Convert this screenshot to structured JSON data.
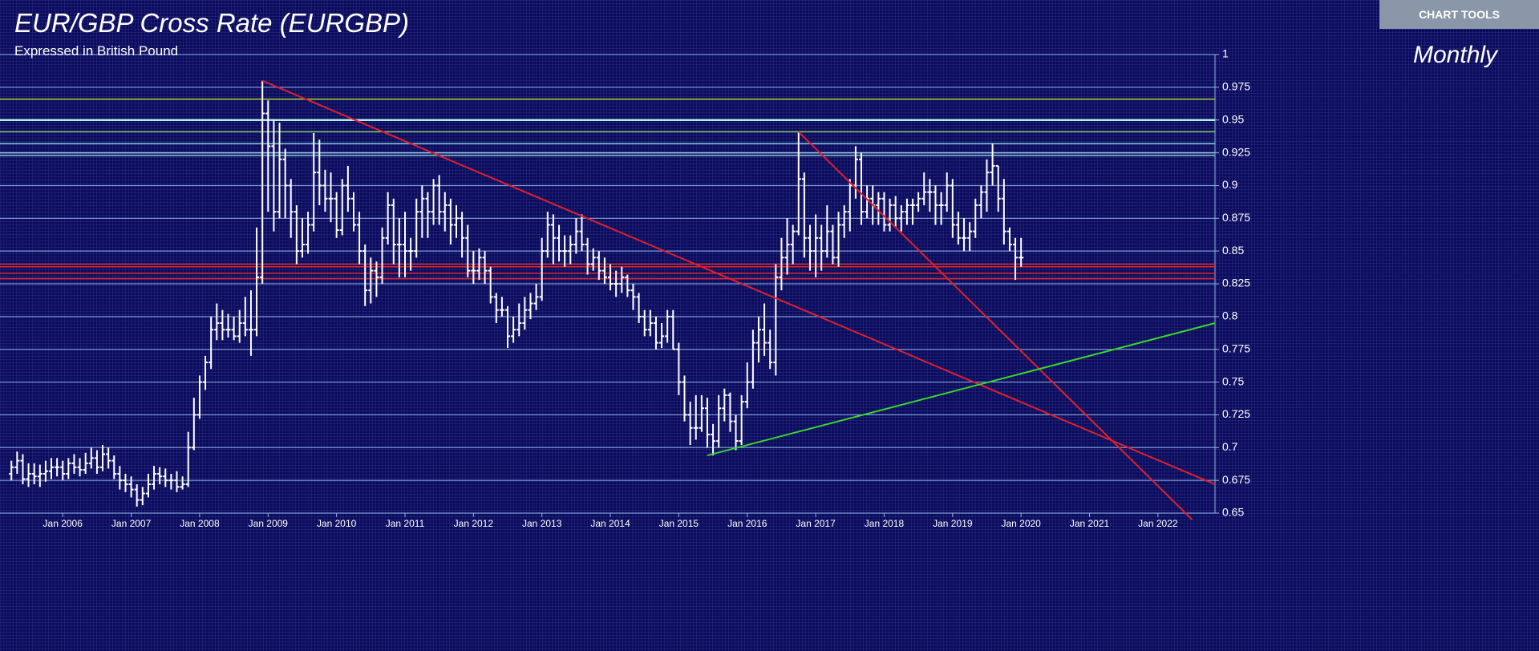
{
  "chart_tools": "CHART TOOLS",
  "chart_data": {
    "type": "ohlc",
    "title": "EUR/GBP Cross Rate (EURGBP)",
    "subtitle": "Expressed in British Pound",
    "period": "Monthly",
    "color": "#ffffff",
    "grid": true,
    "xlim": [
      "2005-02",
      "2022-11"
    ],
    "xticks": [
      {
        "value": "2006-01",
        "label": "Jan 2006"
      },
      {
        "value": "2007-01",
        "label": "Jan 2007"
      },
      {
        "value": "2008-01",
        "label": "Jan 2008"
      },
      {
        "value": "2009-01",
        "label": "Jan 2009"
      },
      {
        "value": "2010-01",
        "label": "Jan 2010"
      },
      {
        "value": "2011-01",
        "label": "Jan 2011"
      },
      {
        "value": "2012-01",
        "label": "Jan 2012"
      },
      {
        "value": "2013-01",
        "label": "Jan 2013"
      },
      {
        "value": "2014-01",
        "label": "Jan 2014"
      },
      {
        "value": "2015-01",
        "label": "Jan 2015"
      },
      {
        "value": "2016-01",
        "label": "Jan 2016"
      },
      {
        "value": "2017-01",
        "label": "Jan 2017"
      },
      {
        "value": "2018-01",
        "label": "Jan 2018"
      },
      {
        "value": "2019-01",
        "label": "Jan 2019"
      },
      {
        "value": "2020-01",
        "label": "Jan 2020"
      },
      {
        "value": "2021-01",
        "label": "Jan 2021"
      },
      {
        "value": "2022-01",
        "label": "Jan 2022"
      }
    ],
    "ylim": [
      0.65,
      1
    ],
    "yticks": [
      0.65,
      0.675,
      0.7,
      0.725,
      0.75,
      0.775,
      0.8,
      0.825,
      0.85,
      0.875,
      0.9,
      0.925,
      0.95,
      0.975,
      1
    ],
    "levels": [
      {
        "value": 0.966,
        "color": "#a6d22a"
      },
      {
        "value": 0.95,
        "color": "#aef0e6"
      },
      {
        "value": 0.941,
        "color": "#8fd06a"
      },
      {
        "value": 0.932,
        "color": "#7fd0e0"
      },
      {
        "value": 0.925,
        "color": "#9fc8e8"
      },
      {
        "value": 0.923,
        "color": "#7cc8c8"
      },
      {
        "value": 0.84,
        "color": "#e02828"
      },
      {
        "value": 0.838,
        "color": "#e02828"
      },
      {
        "value": 0.833,
        "color": "#e02828"
      },
      {
        "value": 0.829,
        "color": "#e02828"
      }
    ],
    "trendlines": [
      {
        "color": "#e0202a",
        "points": [
          [
            "2008-12",
            0.98
          ],
          [
            "2022-11",
            0.672
          ]
        ]
      },
      {
        "color": "#e0202a",
        "points": [
          [
            "2016-10",
            0.941
          ],
          [
            "2022-07",
            0.645
          ]
        ]
      },
      {
        "color": "#3ad62a",
        "points": [
          [
            "2015-06",
            0.694
          ],
          [
            "2022-11",
            0.795
          ]
        ]
      }
    ],
    "x": [
      "2005-04",
      "2005-05",
      "2005-06",
      "2005-07",
      "2005-08",
      "2005-09",
      "2005-10",
      "2005-11",
      "2005-12",
      "2006-01",
      "2006-02",
      "2006-03",
      "2006-04",
      "2006-05",
      "2006-06",
      "2006-07",
      "2006-08",
      "2006-09",
      "2006-10",
      "2006-11",
      "2006-12",
      "2007-01",
      "2007-02",
      "2007-03",
      "2007-04",
      "2007-05",
      "2007-06",
      "2007-07",
      "2007-08",
      "2007-09",
      "2007-10",
      "2007-11",
      "2007-12",
      "2008-01",
      "2008-02",
      "2008-03",
      "2008-04",
      "2008-05",
      "2008-06",
      "2008-07",
      "2008-08",
      "2008-09",
      "2008-10",
      "2008-11",
      "2008-12",
      "2009-01",
      "2009-02",
      "2009-03",
      "2009-04",
      "2009-05",
      "2009-06",
      "2009-07",
      "2009-08",
      "2009-09",
      "2009-10",
      "2009-11",
      "2009-12",
      "2010-01",
      "2010-02",
      "2010-03",
      "2010-04",
      "2010-05",
      "2010-06",
      "2010-07",
      "2010-08",
      "2010-09",
      "2010-10",
      "2010-11",
      "2010-12",
      "2011-01",
      "2011-02",
      "2011-03",
      "2011-04",
      "2011-05",
      "2011-06",
      "2011-07",
      "2011-08",
      "2011-09",
      "2011-10",
      "2011-11",
      "2011-12",
      "2012-01",
      "2012-02",
      "2012-03",
      "2012-04",
      "2012-05",
      "2012-06",
      "2012-07",
      "2012-08",
      "2012-09",
      "2012-10",
      "2012-11",
      "2012-12",
      "2013-01",
      "2013-02",
      "2013-03",
      "2013-04",
      "2013-05",
      "2013-06",
      "2013-07",
      "2013-08",
      "2013-09",
      "2013-10",
      "2013-11",
      "2013-12",
      "2014-01",
      "2014-02",
      "2014-03",
      "2014-04",
      "2014-05",
      "2014-06",
      "2014-07",
      "2014-08",
      "2014-09",
      "2014-10",
      "2014-11",
      "2014-12",
      "2015-01",
      "2015-02",
      "2015-03",
      "2015-04",
      "2015-05",
      "2015-06",
      "2015-07",
      "2015-08",
      "2015-09",
      "2015-10",
      "2015-11",
      "2015-12",
      "2016-01",
      "2016-02",
      "2016-03",
      "2016-04",
      "2016-05",
      "2016-06",
      "2016-07",
      "2016-08",
      "2016-09",
      "2016-10",
      "2016-11",
      "2016-12",
      "2017-01",
      "2017-02",
      "2017-03",
      "2017-04",
      "2017-05",
      "2017-06",
      "2017-07",
      "2017-08",
      "2017-09",
      "2017-10",
      "2017-11",
      "2017-12",
      "2018-01",
      "2018-02",
      "2018-03",
      "2018-04",
      "2018-05",
      "2018-06",
      "2018-07",
      "2018-08",
      "2018-09",
      "2018-10",
      "2018-11",
      "2018-12",
      "2019-01",
      "2019-02",
      "2019-03",
      "2019-04",
      "2019-05",
      "2019-06",
      "2019-07",
      "2019-08",
      "2019-09",
      "2019-10",
      "2019-11",
      "2019-12",
      "2020-01"
    ],
    "ohlc": [
      [
        0.68,
        0.69,
        0.675,
        0.685
      ],
      [
        0.685,
        0.697,
        0.68,
        0.69
      ],
      [
        0.69,
        0.695,
        0.672,
        0.676
      ],
      [
        0.676,
        0.688,
        0.67,
        0.68
      ],
      [
        0.68,
        0.688,
        0.672,
        0.678
      ],
      [
        0.678,
        0.687,
        0.67,
        0.68
      ],
      [
        0.68,
        0.69,
        0.674,
        0.682
      ],
      [
        0.682,
        0.692,
        0.676,
        0.685
      ],
      [
        0.685,
        0.692,
        0.678,
        0.685
      ],
      [
        0.685,
        0.69,
        0.675,
        0.68
      ],
      [
        0.68,
        0.692,
        0.676,
        0.688
      ],
      [
        0.688,
        0.695,
        0.68,
        0.685
      ],
      [
        0.685,
        0.692,
        0.678,
        0.683
      ],
      [
        0.683,
        0.696,
        0.68,
        0.688
      ],
      [
        0.688,
        0.7,
        0.684,
        0.692
      ],
      [
        0.692,
        0.698,
        0.68,
        0.685
      ],
      [
        0.685,
        0.702,
        0.682,
        0.695
      ],
      [
        0.695,
        0.7,
        0.684,
        0.69
      ],
      [
        0.69,
        0.694,
        0.676,
        0.68
      ],
      [
        0.68,
        0.686,
        0.668,
        0.675
      ],
      [
        0.675,
        0.68,
        0.666,
        0.672
      ],
      [
        0.672,
        0.678,
        0.662,
        0.668
      ],
      [
        0.668,
        0.672,
        0.655,
        0.66
      ],
      [
        0.66,
        0.67,
        0.656,
        0.665
      ],
      [
        0.665,
        0.68,
        0.662,
        0.672
      ],
      [
        0.672,
        0.686,
        0.668,
        0.68
      ],
      [
        0.68,
        0.685,
        0.672,
        0.678
      ],
      [
        0.678,
        0.684,
        0.67,
        0.675
      ],
      [
        0.675,
        0.68,
        0.668,
        0.675
      ],
      [
        0.675,
        0.682,
        0.666,
        0.67
      ],
      [
        0.67,
        0.678,
        0.668,
        0.672
      ],
      [
        0.672,
        0.712,
        0.67,
        0.7
      ],
      [
        0.7,
        0.738,
        0.698,
        0.725
      ],
      [
        0.725,
        0.755,
        0.722,
        0.75
      ],
      [
        0.75,
        0.77,
        0.744,
        0.765
      ],
      [
        0.765,
        0.8,
        0.76,
        0.79
      ],
      [
        0.79,
        0.81,
        0.782,
        0.795
      ],
      [
        0.795,
        0.805,
        0.782,
        0.79
      ],
      [
        0.79,
        0.802,
        0.784,
        0.79
      ],
      [
        0.79,
        0.8,
        0.782,
        0.785
      ],
      [
        0.785,
        0.805,
        0.78,
        0.795
      ],
      [
        0.795,
        0.815,
        0.785,
        0.79
      ],
      [
        0.79,
        0.82,
        0.77,
        0.79
      ],
      [
        0.79,
        0.868,
        0.785,
        0.83
      ],
      [
        0.83,
        0.98,
        0.825,
        0.955
      ],
      [
        0.955,
        0.965,
        0.88,
        0.93
      ],
      [
        0.93,
        0.95,
        0.865,
        0.88
      ],
      [
        0.88,
        0.948,
        0.875,
        0.92
      ],
      [
        0.92,
        0.928,
        0.875,
        0.9
      ],
      [
        0.9,
        0.905,
        0.86,
        0.88
      ],
      [
        0.88,
        0.885,
        0.84,
        0.85
      ],
      [
        0.85,
        0.875,
        0.845,
        0.855
      ],
      [
        0.855,
        0.88,
        0.848,
        0.87
      ],
      [
        0.87,
        0.94,
        0.865,
        0.91
      ],
      [
        0.91,
        0.935,
        0.885,
        0.9
      ],
      [
        0.9,
        0.912,
        0.88,
        0.89
      ],
      [
        0.89,
        0.91,
        0.872,
        0.89
      ],
      [
        0.89,
        0.895,
        0.86,
        0.866
      ],
      [
        0.866,
        0.905,
        0.862,
        0.9
      ],
      [
        0.9,
        0.915,
        0.88,
        0.89
      ],
      [
        0.89,
        0.895,
        0.865,
        0.87
      ],
      [
        0.87,
        0.88,
        0.84,
        0.85
      ],
      [
        0.85,
        0.855,
        0.808,
        0.82
      ],
      [
        0.82,
        0.845,
        0.81,
        0.835
      ],
      [
        0.835,
        0.842,
        0.815,
        0.83
      ],
      [
        0.83,
        0.868,
        0.825,
        0.86
      ],
      [
        0.86,
        0.895,
        0.855,
        0.885
      ],
      [
        0.885,
        0.89,
        0.84,
        0.855
      ],
      [
        0.855,
        0.875,
        0.83,
        0.855
      ],
      [
        0.855,
        0.88,
        0.83,
        0.85
      ],
      [
        0.85,
        0.86,
        0.835,
        0.85
      ],
      [
        0.85,
        0.89,
        0.845,
        0.88
      ],
      [
        0.88,
        0.9,
        0.86,
        0.89
      ],
      [
        0.89,
        0.895,
        0.86,
        0.88
      ],
      [
        0.88,
        0.905,
        0.87,
        0.9
      ],
      [
        0.9,
        0.908,
        0.87,
        0.88
      ],
      [
        0.88,
        0.895,
        0.865,
        0.885
      ],
      [
        0.885,
        0.89,
        0.855,
        0.87
      ],
      [
        0.87,
        0.885,
        0.86,
        0.875
      ],
      [
        0.875,
        0.88,
        0.845,
        0.86
      ],
      [
        0.86,
        0.87,
        0.83,
        0.835
      ],
      [
        0.835,
        0.85,
        0.825,
        0.835
      ],
      [
        0.835,
        0.852,
        0.828,
        0.845
      ],
      [
        0.845,
        0.85,
        0.825,
        0.835
      ],
      [
        0.835,
        0.838,
        0.81,
        0.815
      ],
      [
        0.815,
        0.818,
        0.795,
        0.805
      ],
      [
        0.805,
        0.815,
        0.8,
        0.805
      ],
      [
        0.805,
        0.808,
        0.776,
        0.785
      ],
      [
        0.785,
        0.8,
        0.78,
        0.79
      ],
      [
        0.79,
        0.81,
        0.785,
        0.795
      ],
      [
        0.795,
        0.815,
        0.79,
        0.805
      ],
      [
        0.805,
        0.818,
        0.798,
        0.81
      ],
      [
        0.81,
        0.825,
        0.805,
        0.815
      ],
      [
        0.815,
        0.86,
        0.812,
        0.85
      ],
      [
        0.85,
        0.88,
        0.845,
        0.87
      ],
      [
        0.87,
        0.878,
        0.84,
        0.86
      ],
      [
        0.86,
        0.87,
        0.842,
        0.85
      ],
      [
        0.85,
        0.862,
        0.838,
        0.85
      ],
      [
        0.85,
        0.862,
        0.84,
        0.855
      ],
      [
        0.855,
        0.875,
        0.848,
        0.865
      ],
      [
        0.865,
        0.878,
        0.85,
        0.855
      ],
      [
        0.855,
        0.86,
        0.832,
        0.84
      ],
      [
        0.84,
        0.852,
        0.835,
        0.845
      ],
      [
        0.845,
        0.85,
        0.828,
        0.835
      ],
      [
        0.835,
        0.845,
        0.825,
        0.83
      ],
      [
        0.83,
        0.84,
        0.82,
        0.825
      ],
      [
        0.825,
        0.835,
        0.815,
        0.825
      ],
      [
        0.825,
        0.838,
        0.818,
        0.83
      ],
      [
        0.83,
        0.832,
        0.815,
        0.82
      ],
      [
        0.82,
        0.825,
        0.805,
        0.815
      ],
      [
        0.815,
        0.818,
        0.795,
        0.8
      ],
      [
        0.8,
        0.805,
        0.785,
        0.79
      ],
      [
        0.79,
        0.805,
        0.785,
        0.795
      ],
      [
        0.795,
        0.8,
        0.775,
        0.78
      ],
      [
        0.78,
        0.795,
        0.776,
        0.785
      ],
      [
        0.785,
        0.805,
        0.78,
        0.8
      ],
      [
        0.8,
        0.805,
        0.775,
        0.775
      ],
      [
        0.775,
        0.78,
        0.74,
        0.75
      ],
      [
        0.75,
        0.755,
        0.72,
        0.725
      ],
      [
        0.725,
        0.735,
        0.702,
        0.715
      ],
      [
        0.715,
        0.74,
        0.706,
        0.715
      ],
      [
        0.715,
        0.74,
        0.712,
        0.73
      ],
      [
        0.73,
        0.738,
        0.7,
        0.71
      ],
      [
        0.71,
        0.718,
        0.694,
        0.705
      ],
      [
        0.705,
        0.74,
        0.7,
        0.73
      ],
      [
        0.73,
        0.745,
        0.72,
        0.74
      ],
      [
        0.74,
        0.742,
        0.712,
        0.72
      ],
      [
        0.72,
        0.725,
        0.698,
        0.705
      ],
      [
        0.705,
        0.74,
        0.702,
        0.735
      ],
      [
        0.735,
        0.765,
        0.73,
        0.75
      ],
      [
        0.75,
        0.79,
        0.745,
        0.78
      ],
      [
        0.78,
        0.8,
        0.765,
        0.79
      ],
      [
        0.79,
        0.81,
        0.77,
        0.78
      ],
      [
        0.78,
        0.79,
        0.76,
        0.765
      ],
      [
        0.765,
        0.84,
        0.755,
        0.83
      ],
      [
        0.83,
        0.86,
        0.82,
        0.845
      ],
      [
        0.845,
        0.875,
        0.832,
        0.855
      ],
      [
        0.855,
        0.87,
        0.84,
        0.865
      ],
      [
        0.865,
        0.941,
        0.862,
        0.905
      ],
      [
        0.905,
        0.91,
        0.845,
        0.86
      ],
      [
        0.86,
        0.87,
        0.835,
        0.85
      ],
      [
        0.85,
        0.878,
        0.83,
        0.86
      ],
      [
        0.86,
        0.87,
        0.835,
        0.85
      ],
      [
        0.85,
        0.885,
        0.845,
        0.865
      ],
      [
        0.865,
        0.87,
        0.84,
        0.845
      ],
      [
        0.845,
        0.88,
        0.838,
        0.87
      ],
      [
        0.87,
        0.885,
        0.86,
        0.88
      ],
      [
        0.88,
        0.905,
        0.865,
        0.9
      ],
      [
        0.9,
        0.93,
        0.89,
        0.92
      ],
      [
        0.92,
        0.925,
        0.87,
        0.88
      ],
      [
        0.88,
        0.9,
        0.875,
        0.89
      ],
      [
        0.89,
        0.9,
        0.87,
        0.885
      ],
      [
        0.885,
        0.895,
        0.87,
        0.89
      ],
      [
        0.89,
        0.895,
        0.865,
        0.87
      ],
      [
        0.87,
        0.89,
        0.865,
        0.885
      ],
      [
        0.885,
        0.892,
        0.868,
        0.875
      ],
      [
        0.875,
        0.885,
        0.865,
        0.88
      ],
      [
        0.88,
        0.89,
        0.87,
        0.885
      ],
      [
        0.885,
        0.89,
        0.87,
        0.885
      ],
      [
        0.885,
        0.895,
        0.88,
        0.89
      ],
      [
        0.89,
        0.91,
        0.885,
        0.895
      ],
      [
        0.895,
        0.905,
        0.88,
        0.895
      ],
      [
        0.895,
        0.9,
        0.87,
        0.885
      ],
      [
        0.885,
        0.895,
        0.87,
        0.885
      ],
      [
        0.885,
        0.91,
        0.88,
        0.9
      ],
      [
        0.9,
        0.905,
        0.86,
        0.87
      ],
      [
        0.87,
        0.88,
        0.855,
        0.86
      ],
      [
        0.86,
        0.875,
        0.85,
        0.86
      ],
      [
        0.86,
        0.872,
        0.85,
        0.865
      ],
      [
        0.865,
        0.89,
        0.86,
        0.885
      ],
      [
        0.885,
        0.9,
        0.875,
        0.895
      ],
      [
        0.895,
        0.92,
        0.88,
        0.91
      ],
      [
        0.91,
        0.932,
        0.9,
        0.915
      ],
      [
        0.915,
        0.915,
        0.88,
        0.89
      ],
      [
        0.89,
        0.905,
        0.855,
        0.865
      ],
      [
        0.865,
        0.868,
        0.85,
        0.855
      ],
      [
        0.855,
        0.86,
        0.828,
        0.845
      ],
      [
        0.845,
        0.86,
        0.838,
        0.845
      ]
    ]
  }
}
